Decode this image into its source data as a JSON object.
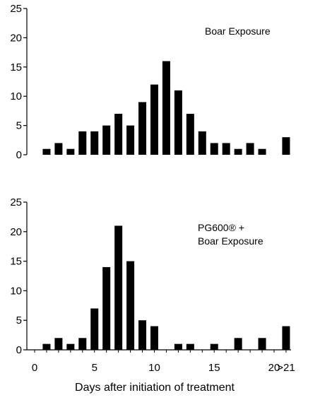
{
  "chart_data": [
    {
      "type": "bar",
      "title": "",
      "annotation": [
        "Boar Exposure"
      ],
      "xlabel": "",
      "ylabel": "",
      "ylim": [
        0,
        25
      ],
      "yticks": [
        0,
        5,
        10,
        15,
        20,
        25
      ],
      "x": [
        1,
        2,
        3,
        4,
        5,
        6,
        7,
        8,
        9,
        10,
        11,
        12,
        13,
        14,
        15,
        16,
        17,
        18,
        19,
        20,
        21
      ],
      "values": [
        1,
        2,
        1,
        4,
        4,
        5,
        7,
        5,
        9,
        12,
        16,
        11,
        7,
        4,
        2,
        2,
        1,
        2,
        1,
        0,
        3
      ],
      "grid": false
    },
    {
      "type": "bar",
      "title": "",
      "annotation": [
        "PG600® +",
        "Boar Exposure"
      ],
      "xlabel": "Days after initiation of treatment",
      "ylabel": "",
      "ylim": [
        0,
        25
      ],
      "yticks": [
        0,
        5,
        10,
        15,
        20,
        25
      ],
      "x": [
        1,
        2,
        3,
        4,
        5,
        6,
        7,
        8,
        9,
        10,
        11,
        12,
        13,
        14,
        15,
        16,
        17,
        18,
        19,
        20,
        21
      ],
      "values": [
        1,
        2,
        1,
        2,
        7,
        14,
        21,
        15,
        5,
        4,
        0,
        1,
        1,
        0,
        1,
        0,
        2,
        0,
        2,
        0,
        4
      ],
      "grid": false
    }
  ],
  "x_axis": {
    "tick_labels": [
      "0",
      "5",
      "10",
      "15",
      "20",
      ">21"
    ],
    "tick_values": [
      0,
      5,
      10,
      15,
      20,
      21
    ]
  }
}
